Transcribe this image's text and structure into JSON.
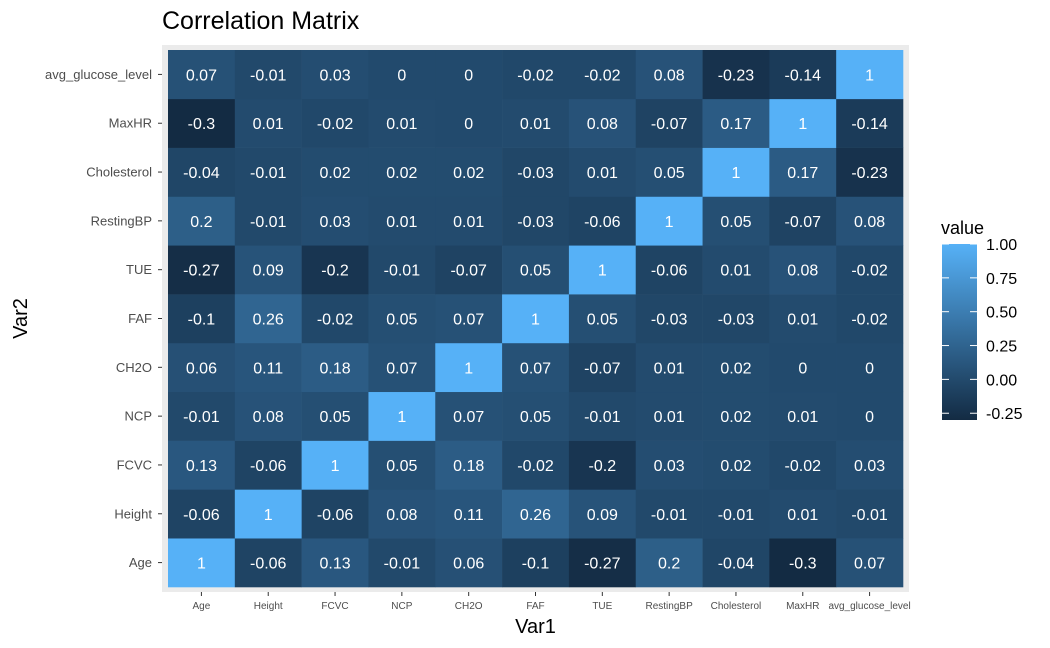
{
  "chart_data": {
    "type": "heatmap",
    "title": "Correlation Matrix",
    "xlabel": "Var1",
    "ylabel": "Var2",
    "x_categories": [
      "Age",
      "Height",
      "FCVC",
      "NCP",
      "CH2O",
      "FAF",
      "TUE",
      "RestingBP",
      "Cholesterol",
      "MaxHR",
      "avg_glucose_level"
    ],
    "y_categories": [
      "Age",
      "Height",
      "FCVC",
      "NCP",
      "CH2O",
      "FAF",
      "TUE",
      "RestingBP",
      "Cholesterol",
      "MaxHR",
      "avg_glucose_level"
    ],
    "values": [
      [
        1,
        -0.06,
        0.13,
        -0.01,
        0.06,
        -0.1,
        -0.27,
        0.2,
        -0.04,
        -0.3,
        0.07
      ],
      [
        -0.06,
        1,
        -0.06,
        0.08,
        0.11,
        0.26,
        0.09,
        -0.01,
        -0.01,
        0.01,
        -0.01
      ],
      [
        0.13,
        -0.06,
        1,
        0.05,
        0.18,
        -0.02,
        -0.2,
        0.03,
        0.02,
        -0.02,
        0.03
      ],
      [
        -0.01,
        0.08,
        0.05,
        1,
        0.07,
        0.05,
        -0.01,
        0.01,
        0.02,
        0.01,
        0
      ],
      [
        0.06,
        0.11,
        0.18,
        0.07,
        1,
        0.07,
        -0.07,
        0.01,
        0.02,
        0,
        0
      ],
      [
        -0.1,
        0.26,
        -0.02,
        0.05,
        0.07,
        1,
        0.05,
        -0.03,
        -0.03,
        0.01,
        -0.02
      ],
      [
        -0.27,
        0.09,
        -0.2,
        -0.01,
        -0.07,
        0.05,
        1,
        -0.06,
        0.01,
        0.08,
        -0.02
      ],
      [
        0.2,
        -0.01,
        0.03,
        0.01,
        0.01,
        -0.03,
        -0.06,
        1,
        0.05,
        -0.07,
        0.08
      ],
      [
        -0.04,
        -0.01,
        0.02,
        0.02,
        0.02,
        -0.03,
        0.01,
        0.05,
        1,
        0.17,
        -0.23
      ],
      [
        -0.3,
        0.01,
        -0.02,
        0.01,
        0,
        0.01,
        0.08,
        -0.07,
        0.17,
        1,
        -0.14
      ],
      [
        0.07,
        -0.01,
        0.03,
        0,
        0,
        -0.02,
        -0.02,
        0.08,
        -0.23,
        -0.14,
        1
      ]
    ],
    "labels": [
      [
        "1",
        "-0.06",
        "0.13",
        "-0.01",
        "0.06",
        "-0.1",
        "-0.27",
        "0.2",
        "-0.04",
        "-0.3",
        "0.07"
      ],
      [
        "-0.06",
        "1",
        "-0.06",
        "0.08",
        "0.11",
        "0.26",
        "0.09",
        "-0.01",
        "-0.01",
        "0.01",
        "-0.01"
      ],
      [
        "0.13",
        "-0.06",
        "1",
        "0.05",
        "0.18",
        "-0.02",
        "-0.2",
        "0.03",
        "0.02",
        "-0.02",
        "0.03"
      ],
      [
        "-0.01",
        "0.08",
        "0.05",
        "1",
        "0.07",
        "0.05",
        "-0.01",
        "0.01",
        "0.02",
        "0.01",
        "0"
      ],
      [
        "0.06",
        "0.11",
        "0.18",
        "0.07",
        "1",
        "0.07",
        "-0.07",
        "0.01",
        "0.02",
        "0",
        "0"
      ],
      [
        "-0.1",
        "0.26",
        "-0.02",
        "0.05",
        "0.07",
        "1",
        "0.05",
        "-0.03",
        "-0.03",
        "0.01",
        "-0.02"
      ],
      [
        "-0.27",
        "0.09",
        "-0.2",
        "-0.01",
        "-0.07",
        "0.05",
        "1",
        "-0.06",
        "0.01",
        "0.08",
        "-0.02"
      ],
      [
        "0.2",
        "-0.01",
        "0.03",
        "0.01",
        "0.01",
        "-0.03",
        "-0.06",
        "1",
        "0.05",
        "-0.07",
        "0.08"
      ],
      [
        "-0.04",
        "-0.01",
        "0.02",
        "0.02",
        "0.02",
        "-0.03",
        "0.01",
        "0.05",
        "1",
        "0.17",
        "-0.23"
      ],
      [
        "-0.3",
        "0.01",
        "-0.02",
        "0.01",
        "0",
        "0.01",
        "0.08",
        "-0.07",
        "0.17",
        "1",
        "-0.14"
      ],
      [
        "0.07",
        "-0.01",
        "0.03",
        "0",
        "0",
        "-0.02",
        "-0.02",
        "0.08",
        "-0.23",
        "-0.14",
        "1"
      ]
    ],
    "colorscale": {
      "min": -0.3,
      "max": 1,
      "low_color": "#132B43",
      "high_color": "#56B1F7"
    },
    "legend": {
      "title": "value",
      "position": "right",
      "ticks": [
        "1.00",
        "0.75",
        "0.50",
        "0.25",
        "0.00",
        "-0.25"
      ]
    },
    "panel_background": "#ebebeb",
    "grid": false
  }
}
